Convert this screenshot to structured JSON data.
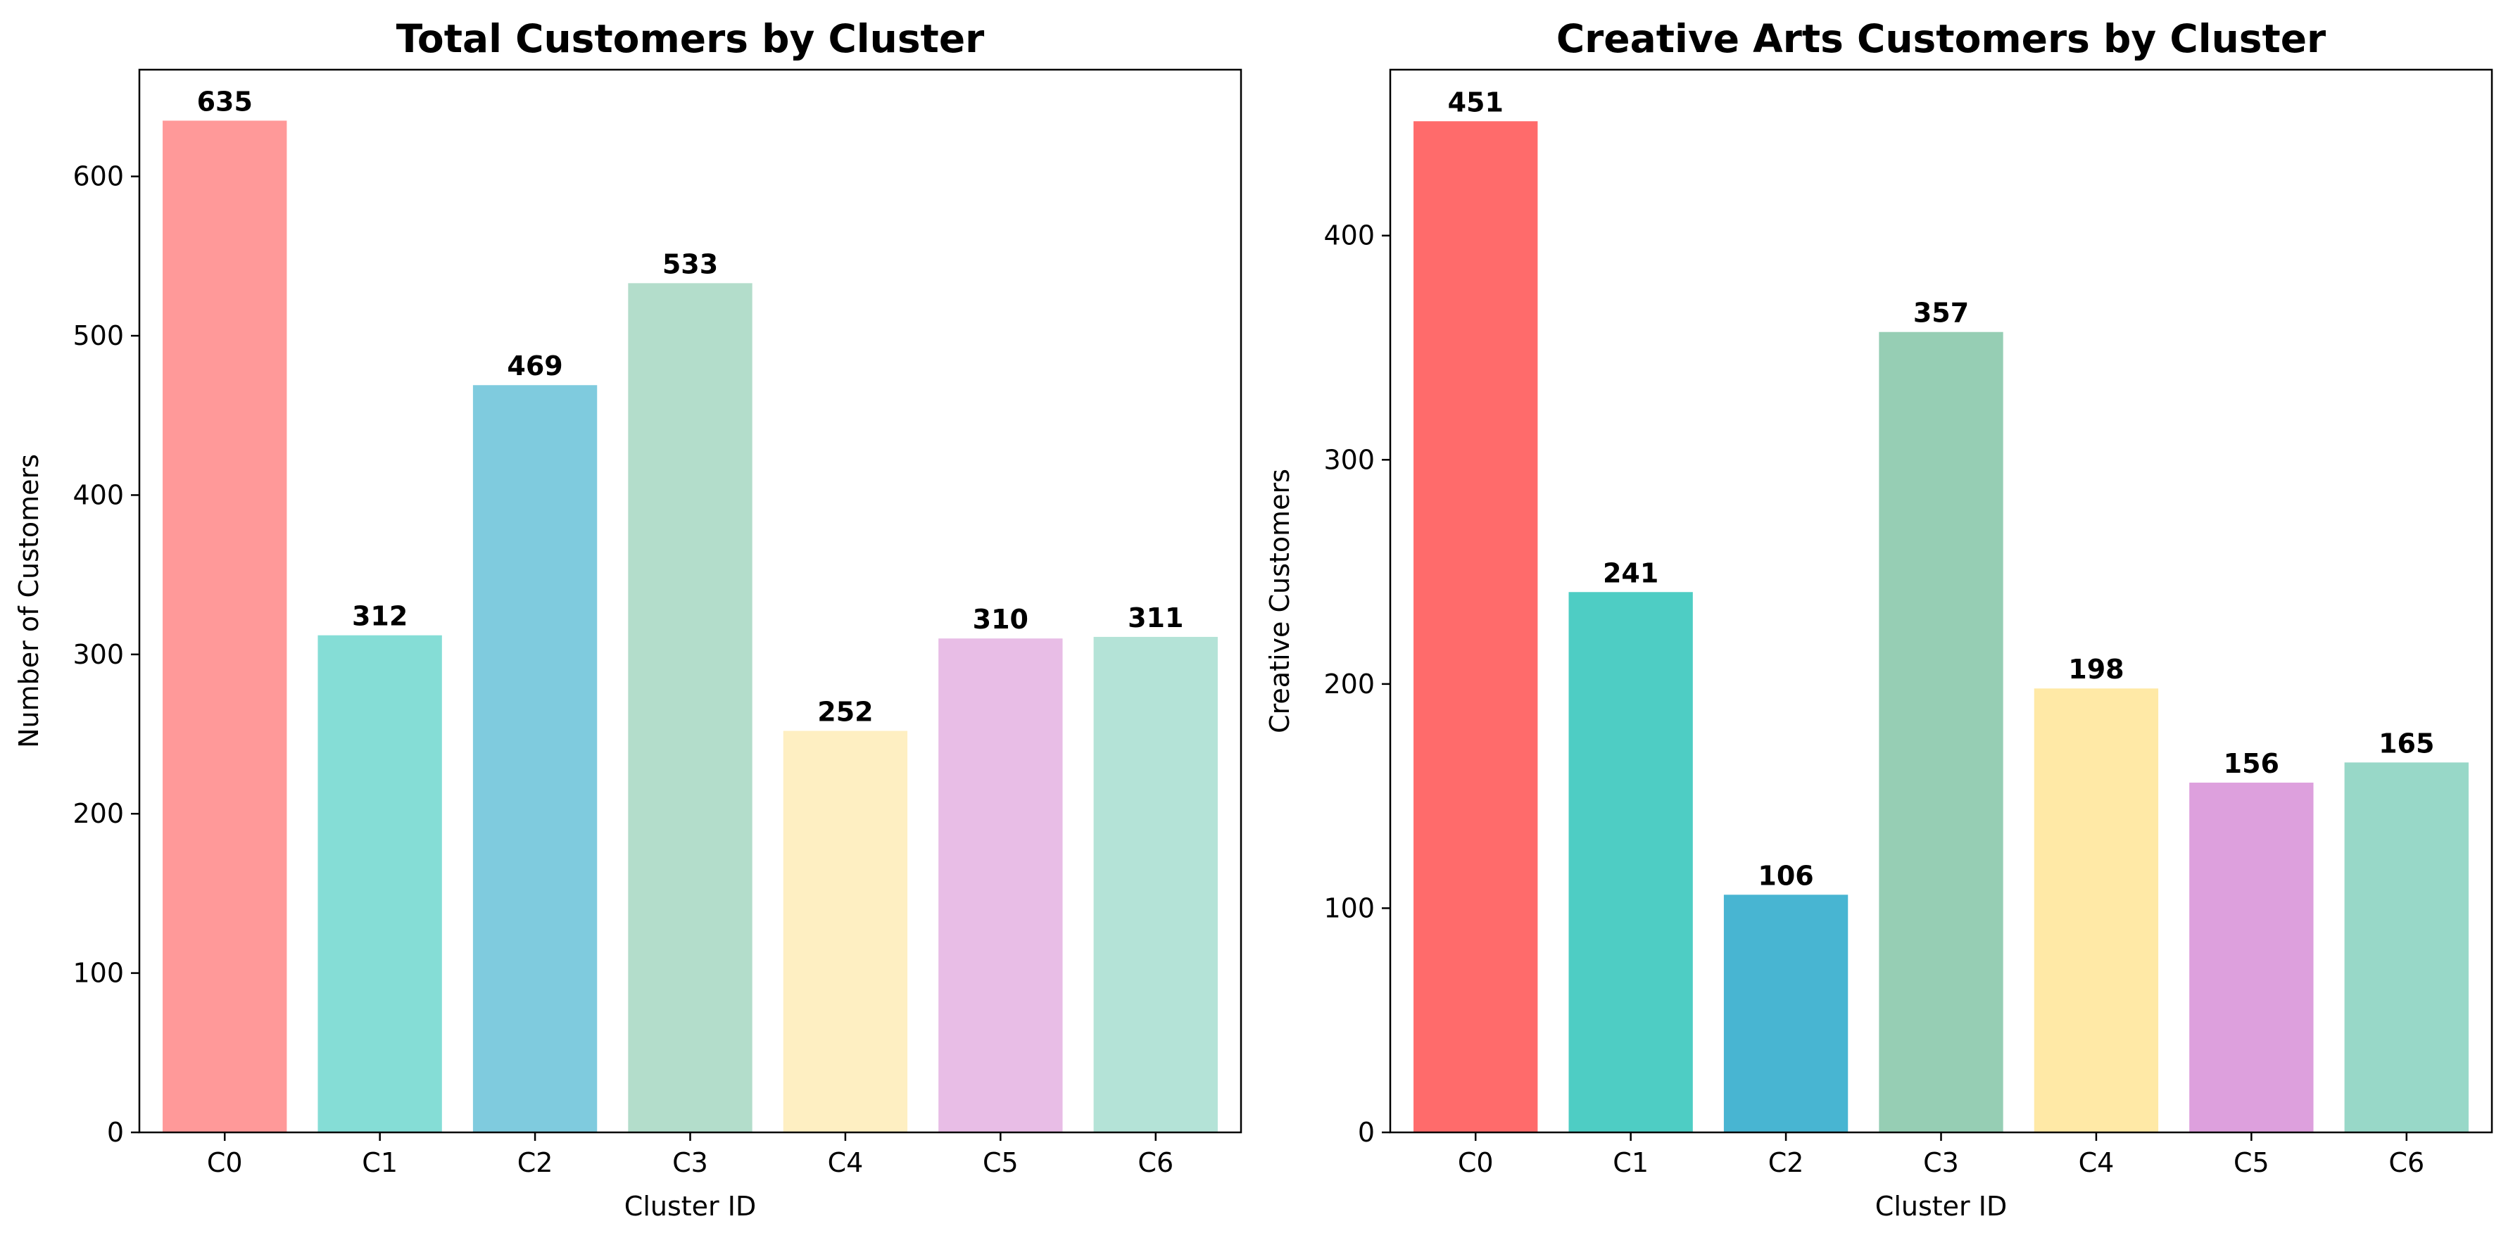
{
  "chart_data": [
    {
      "type": "bar",
      "title": "Total Customers by Cluster",
      "xlabel": "Cluster ID",
      "ylabel": "Number of Customers",
      "categories": [
        "C0",
        "C1",
        "C2",
        "C3",
        "C4",
        "C5",
        "C6"
      ],
      "values": [
        635,
        312,
        469,
        533,
        252,
        310,
        311
      ],
      "colors": [
        "#FF9999",
        "#85DDD6",
        "#7FCBDE",
        "#B3DDCB",
        "#FEEFC2",
        "#E8BDE6",
        "#B4E3D7"
      ],
      "ylim": [
        0,
        667
      ],
      "yticks": [
        0,
        100,
        200,
        300,
        400,
        500,
        600
      ],
      "grid": false
    },
    {
      "type": "bar",
      "title": "Creative Arts Customers by Cluster",
      "xlabel": "Cluster ID",
      "ylabel": "Creative Customers",
      "categories": [
        "C0",
        "C1",
        "C2",
        "C3",
        "C4",
        "C5",
        "C6"
      ],
      "values": [
        451,
        241,
        106,
        357,
        198,
        156,
        165
      ],
      "colors": [
        "#FF6B6B",
        "#4ECDC4",
        "#48B5D2",
        "#96CEB4",
        "#FFE9A6",
        "#DDA0DD",
        "#98D8C8"
      ],
      "ylim": [
        0,
        474
      ],
      "yticks": [
        0,
        100,
        200,
        300,
        400
      ],
      "grid": false
    }
  ]
}
